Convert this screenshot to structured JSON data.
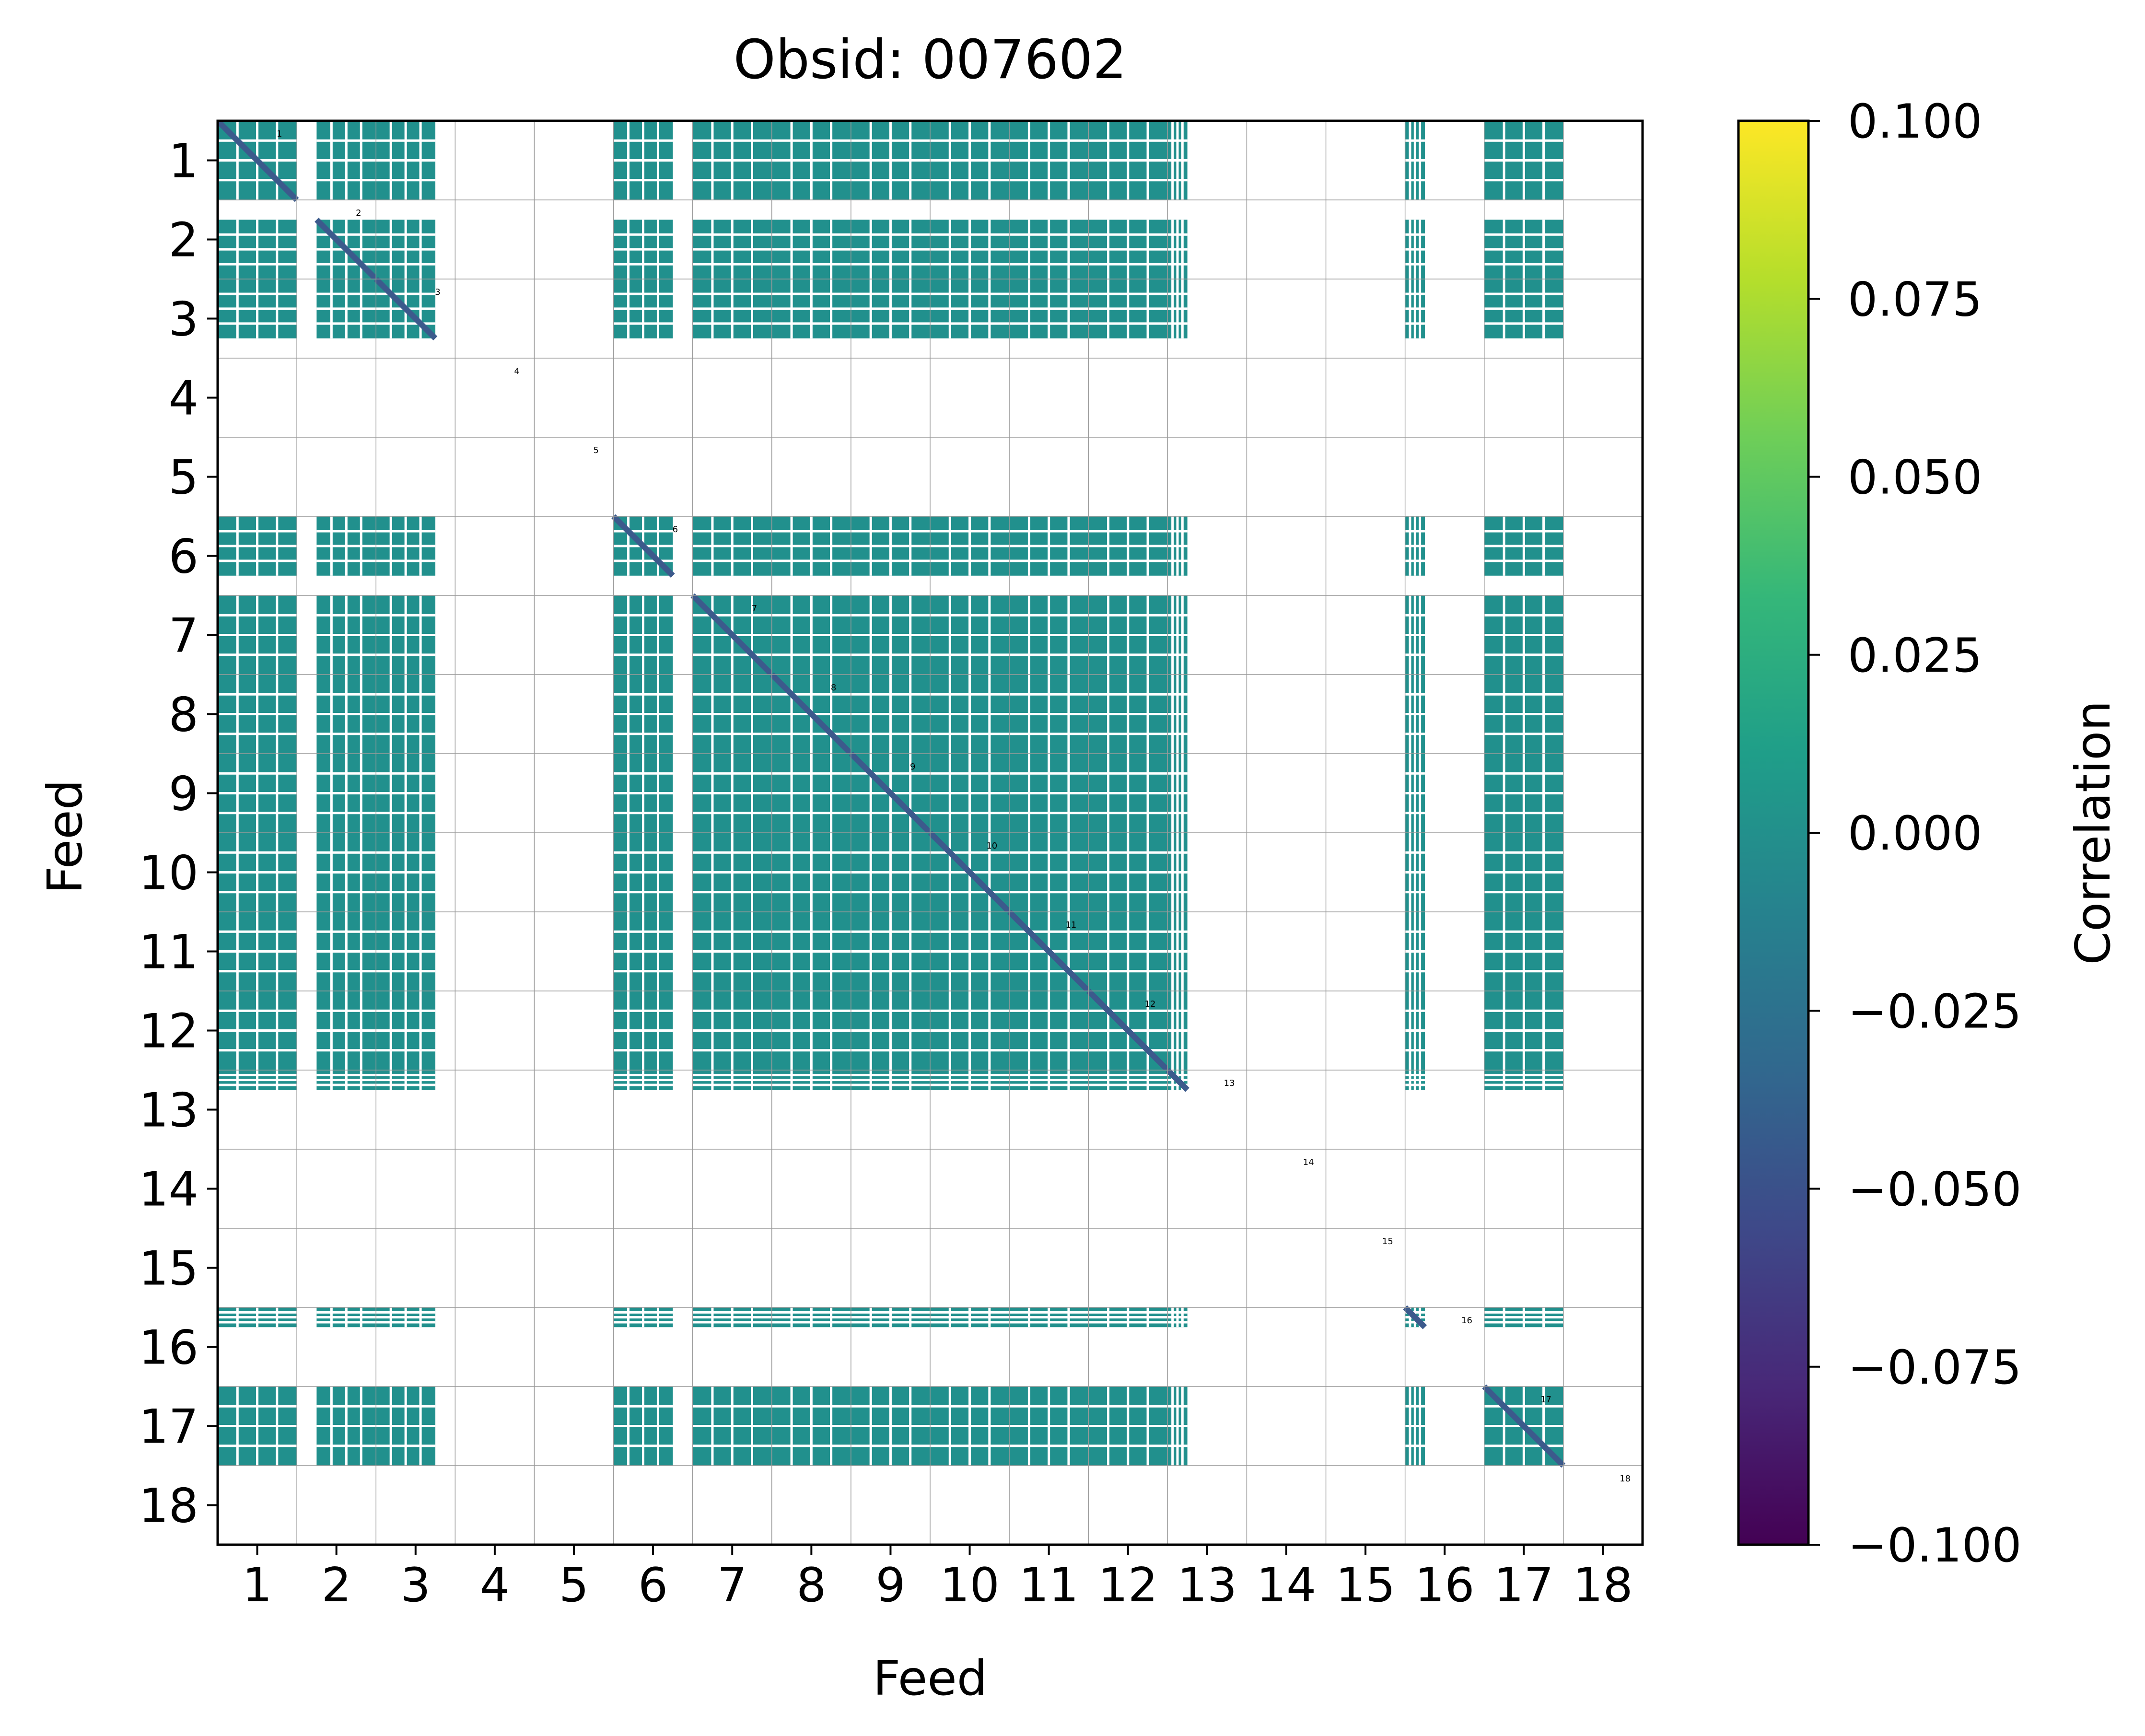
{
  "chart_data": {
    "type": "heatmap",
    "title": "Obsid: 007602",
    "xlabel": "Feed",
    "ylabel": "Feed",
    "x_ticks": [
      "1",
      "2",
      "3",
      "4",
      "5",
      "6",
      "7",
      "8",
      "9",
      "10",
      "11",
      "12",
      "13",
      "14",
      "15",
      "16",
      "17",
      "18"
    ],
    "y_ticks": [
      "1",
      "2",
      "3",
      "4",
      "5",
      "6",
      "7",
      "8",
      "9",
      "10",
      "11",
      "12",
      "13",
      "14",
      "15",
      "16",
      "17",
      "18"
    ],
    "cell_labels": [
      "1",
      "2",
      "3",
      "4",
      "5",
      "6",
      "7",
      "8",
      "9",
      "10",
      "11",
      "12",
      "13",
      "14",
      "15",
      "16",
      "17",
      "18"
    ],
    "grid": true,
    "value_range": [
      -0.1,
      0.1
    ],
    "off_diagonal_value": 0.0,
    "diagonal_value": -0.045,
    "masked_value": null,
    "feed_data_coverage": [
      {
        "feed": 1,
        "valid": [
          0.0,
          1.0
        ]
      },
      {
        "feed": 2,
        "valid": [
          0.25,
          1.0
        ]
      },
      {
        "feed": 3,
        "valid": [
          0.0,
          0.75
        ]
      },
      {
        "feed": 4,
        "valid": null
      },
      {
        "feed": 5,
        "valid": null
      },
      {
        "feed": 6,
        "valid": [
          0.0,
          0.75
        ]
      },
      {
        "feed": 7,
        "valid": [
          0.0,
          1.0
        ]
      },
      {
        "feed": 8,
        "valid": [
          0.0,
          1.0
        ]
      },
      {
        "feed": 9,
        "valid": [
          0.0,
          1.0
        ]
      },
      {
        "feed": 10,
        "valid": [
          0.0,
          1.0
        ]
      },
      {
        "feed": 11,
        "valid": [
          0.0,
          1.0
        ]
      },
      {
        "feed": 12,
        "valid": [
          0.0,
          1.0
        ]
      },
      {
        "feed": 13,
        "valid": [
          0.0,
          0.25
        ]
      },
      {
        "feed": 14,
        "valid": null
      },
      {
        "feed": 15,
        "valid": null
      },
      {
        "feed": 16,
        "valid": [
          0.0,
          0.25
        ]
      },
      {
        "feed": 17,
        "valid": [
          0.0,
          1.0
        ]
      },
      {
        "feed": 18,
        "valid": null
      }
    ],
    "colorbar": {
      "label": "Correlation",
      "colormap": "viridis",
      "ticks": [
        "0.100",
        "0.075",
        "0.050",
        "0.025",
        "0.000",
        "−0.025",
        "−0.050",
        "−0.075",
        "−0.100"
      ],
      "tick_values": [
        0.1,
        0.075,
        0.05,
        0.025,
        0.0,
        -0.025,
        -0.05,
        -0.075,
        -0.1
      ]
    }
  },
  "colors": {
    "cell_fill": "#21908d",
    "diagonal_fill": "#3c5a8c",
    "separator": "#ffffff",
    "grid": "#9a9a9a",
    "viridis_stops": [
      "#fde725",
      "#b5de2b",
      "#6ece58",
      "#35b779",
      "#1f9e89",
      "#26828e",
      "#31688e",
      "#3e4989",
      "#482878",
      "#440154"
    ]
  }
}
